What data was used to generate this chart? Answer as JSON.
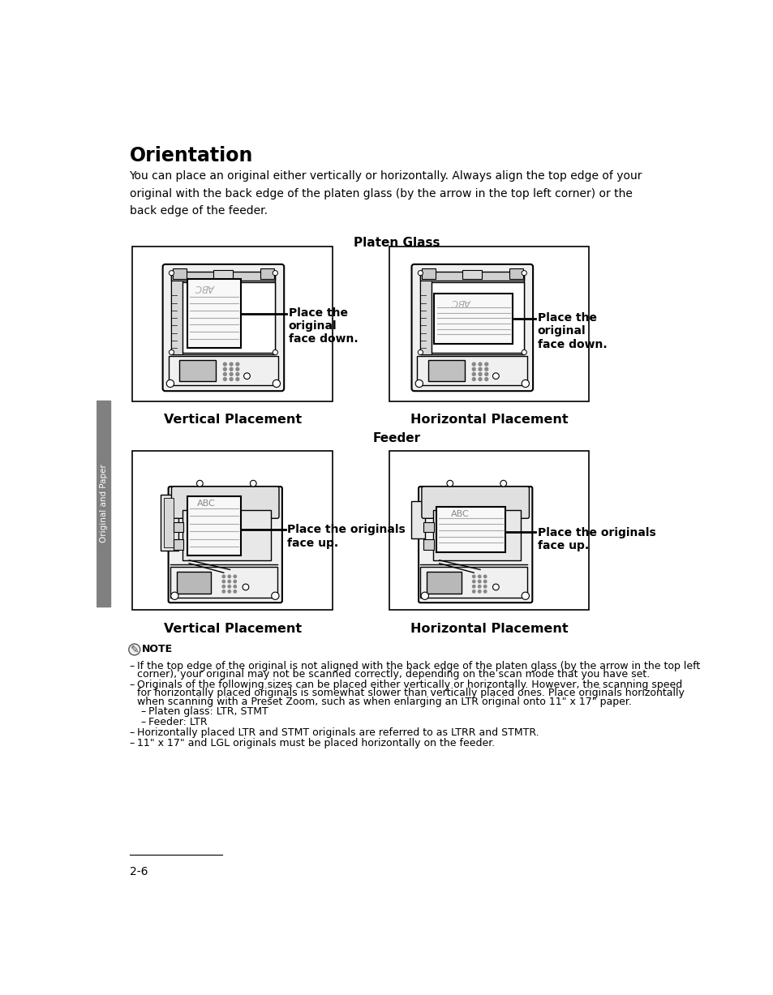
{
  "title": "Orientation",
  "intro_text": "You can place an original either vertically or horizontally. Always align the top edge of your\noriginal with the back edge of the platen glass (by the arrow in the top left corner) or the\nback edge of the feeder.",
  "section1_title": "Platen Glass",
  "section2_title": "Feeder",
  "label_vert": "Vertical Placement",
  "label_horiz": "Horizontal Placement",
  "caption_platen": "Place the\noriginal\nface down.",
  "caption_feeder": "Place the originals\nface up.",
  "sidebar_text": "Original and Paper",
  "note_title": "NOTE",
  "note_bullets": [
    "If the top edge of the original is not aligned with the back edge of the platen glass (by the arrow in the top left\ncorner), your original may not be scanned correctly, depending on the scan mode that you have set.",
    "Originals of the following sizes can be placed either vertically or horizontally. However, the scanning speed\nfor horizontally placed originals is somewhat slower than vertically placed ones. Place originals horizontally\nwhen scanning with a Preset Zoom, such as when enlarging an LTR original onto 11\" x 17\" paper.",
    "Platen glass: LTR, STMT",
    "Feeder: LTR",
    "Horizontally placed LTR and STMT originals are referred to as LTRR and STMTR.",
    "11\" x 17\" and LGL originals must be placed horizontally on the feeder."
  ],
  "page_num": "2-6",
  "bg_color": "#ffffff",
  "text_color": "#000000",
  "sidebar_color": "#808080"
}
